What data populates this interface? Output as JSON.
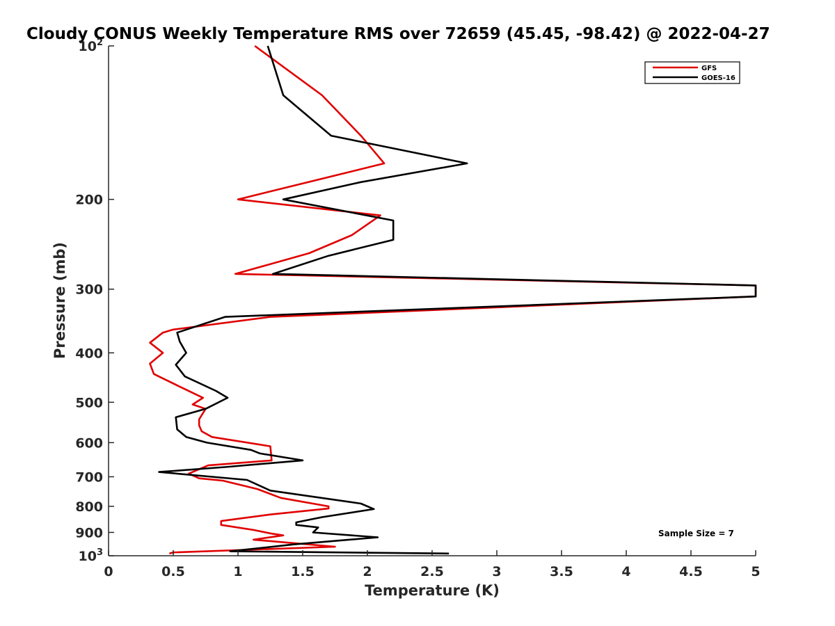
{
  "chart_data": {
    "type": "line",
    "title": "Cloudy CONUS Weekly Temperature RMS over 72659 (45.45, -98.42) @ 2022-04-27",
    "xlabel": "Temperature (K)",
    "ylabel": "Pressure (mb)",
    "xlim": [
      0,
      5
    ],
    "ylim": [
      100,
      1000
    ],
    "y_scale": "log",
    "y_reversed": true,
    "xticks": [
      0,
      0.5,
      1,
      1.5,
      2,
      2.5,
      3,
      3.5,
      4,
      4.5,
      5
    ],
    "xtick_labels": [
      "0",
      "0.5",
      "1",
      "1.5",
      "2",
      "2.5",
      "3",
      "3.5",
      "4",
      "4.5",
      "5"
    ],
    "yticks": [
      {
        "value": 100,
        "base": "10",
        "exp": "2"
      },
      {
        "value": 200,
        "label": "200"
      },
      {
        "value": 300,
        "label": "300"
      },
      {
        "value": 400,
        "label": "400"
      },
      {
        "value": 500,
        "label": "500"
      },
      {
        "value": 600,
        "label": "600"
      },
      {
        "value": 700,
        "label": "700"
      },
      {
        "value": 800,
        "label": "800"
      },
      {
        "value": 900,
        "label": "900"
      },
      {
        "value": 1000,
        "base": "10",
        "exp": "3"
      }
    ],
    "grid": false,
    "legend_position": "top-right",
    "annotation": "Sample Size = 7",
    "series": [
      {
        "name": "GFS",
        "color": "#e00000",
        "points": [
          [
            1.13,
            100
          ],
          [
            1.65,
            125
          ],
          [
            1.95,
            150
          ],
          [
            2.13,
            170
          ],
          [
            1.0,
            200
          ],
          [
            2.1,
            215
          ],
          [
            1.88,
            235
          ],
          [
            1.55,
            255
          ],
          [
            0.98,
            280
          ],
          [
            5.0,
            295
          ],
          [
            5.0,
            310
          ],
          [
            1.25,
            340
          ],
          [
            0.5,
            360
          ],
          [
            0.42,
            365
          ],
          [
            0.32,
            382
          ],
          [
            0.42,
            400
          ],
          [
            0.32,
            420
          ],
          [
            0.35,
            440
          ],
          [
            0.58,
            470
          ],
          [
            0.73,
            490
          ],
          [
            0.65,
            505
          ],
          [
            0.75,
            515
          ],
          [
            0.7,
            540
          ],
          [
            0.7,
            555
          ],
          [
            0.72,
            570
          ],
          [
            0.8,
            585
          ],
          [
            1.25,
            610
          ],
          [
            1.26,
            650
          ],
          [
            0.77,
            665
          ],
          [
            0.62,
            690
          ],
          [
            0.7,
            705
          ],
          [
            0.88,
            712
          ],
          [
            1.15,
            740
          ],
          [
            1.33,
            770
          ],
          [
            1.7,
            800
          ],
          [
            1.7,
            808
          ],
          [
            1.25,
            830
          ],
          [
            0.87,
            855
          ],
          [
            0.87,
            870
          ],
          [
            1.12,
            890
          ],
          [
            1.26,
            905
          ],
          [
            1.35,
            912
          ],
          [
            1.12,
            930
          ],
          [
            1.75,
            960
          ],
          [
            0.5,
            985
          ],
          [
            0.47,
            990
          ]
        ]
      },
      {
        "name": "GOES-16",
        "color": "#000000",
        "points": [
          [
            1.23,
            100
          ],
          [
            1.35,
            125
          ],
          [
            1.72,
            150
          ],
          [
            2.77,
            170
          ],
          [
            1.95,
            185
          ],
          [
            1.35,
            200
          ],
          [
            2.2,
            220
          ],
          [
            2.2,
            240
          ],
          [
            1.7,
            258
          ],
          [
            1.27,
            280
          ],
          [
            5.0,
            295
          ],
          [
            5.0,
            310
          ],
          [
            0.9,
            340
          ],
          [
            0.53,
            365
          ],
          [
            0.55,
            380
          ],
          [
            0.6,
            400
          ],
          [
            0.52,
            422
          ],
          [
            0.59,
            445
          ],
          [
            0.83,
            475
          ],
          [
            0.92,
            490
          ],
          [
            0.75,
            515
          ],
          [
            0.52,
            535
          ],
          [
            0.53,
            565
          ],
          [
            0.6,
            585
          ],
          [
            0.76,
            600
          ],
          [
            1.1,
            620
          ],
          [
            1.17,
            630
          ],
          [
            1.5,
            650
          ],
          [
            0.9,
            670
          ],
          [
            0.39,
            685
          ],
          [
            1.07,
            710
          ],
          [
            1.25,
            745
          ],
          [
            1.95,
            790
          ],
          [
            2.05,
            810
          ],
          [
            1.65,
            840
          ],
          [
            1.45,
            860
          ],
          [
            1.45,
            870
          ],
          [
            1.62,
            880
          ],
          [
            1.58,
            900
          ],
          [
            2.08,
            920
          ],
          [
            1.43,
            950
          ],
          [
            0.94,
            980
          ],
          [
            2.63,
            990
          ]
        ]
      }
    ]
  }
}
